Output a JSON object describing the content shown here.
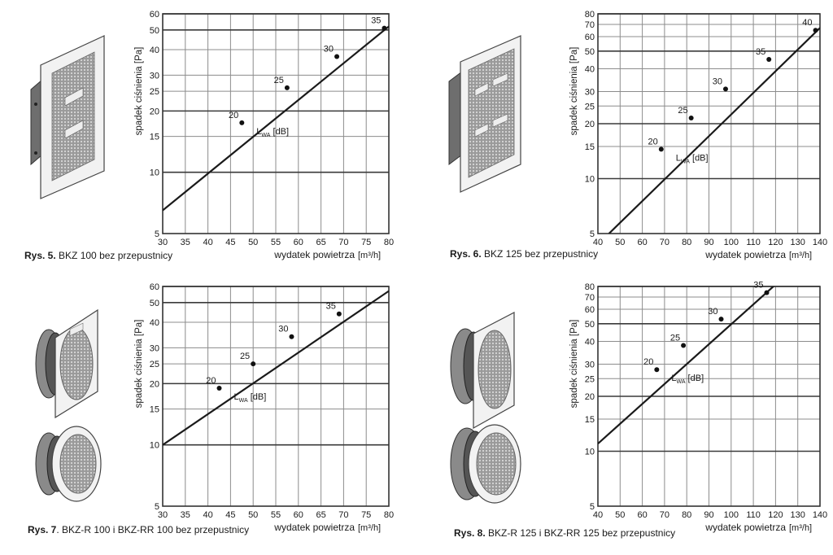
{
  "chart_data": [
    {
      "type": "line",
      "id": "rys5",
      "caption_bold": "Rys. 5.",
      "caption_text": " BKZ 100 bez przepustnicy",
      "xlabel": "wydatek powietrza",
      "xunit": "[m³/h]",
      "ylabel": "spadek ciśnienia [Pa]",
      "x_ticks": [
        "30",
        "35",
        "40",
        "45",
        "50",
        "55",
        "60",
        "65",
        "70",
        "75",
        "80"
      ],
      "xlim": [
        30,
        80
      ],
      "y_ticks": [
        "5",
        "10",
        "15",
        "20",
        "25",
        "30",
        "40",
        "50",
        "60"
      ],
      "ylim": [
        5,
        60
      ],
      "y_scale": "log",
      "series": [
        {
          "values": [
            [
              30,
              6.5
            ],
            [
              80,
              52
            ]
          ]
        }
      ],
      "points": [
        {
          "label": "20",
          "x": 47.5,
          "y": 17.5
        },
        {
          "label": "25",
          "x": 57.5,
          "y": 26
        },
        {
          "label": "30",
          "x": 68.5,
          "y": 37
        },
        {
          "label": "35",
          "x": 79,
          "y": 51
        }
      ],
      "annotation": {
        "main": "L",
        "sub": "WA",
        "tail": " [dB]"
      }
    },
    {
      "type": "line",
      "id": "rys6",
      "caption_bold": "Rys. 6.",
      "caption_text": " BKZ 125 bez przepustnicy",
      "xlabel": "wydatek powietrza",
      "xunit": "[m³/h]",
      "ylabel": "spadek ciśnienia [Pa]",
      "x_ticks": [
        "40",
        "50",
        "60",
        "70",
        "80",
        "90",
        "100",
        "110",
        "120",
        "130",
        "140"
      ],
      "xlim": [
        40,
        140
      ],
      "y_ticks": [
        "5",
        "10",
        "15",
        "20",
        "25",
        "30",
        "40",
        "50",
        "60",
        "70",
        "80"
      ],
      "ylim": [
        5,
        80
      ],
      "y_scale": "log",
      "series": [
        {
          "values": [
            [
              45,
              5
            ],
            [
              140,
              67
            ]
          ]
        }
      ],
      "points": [
        {
          "label": "20",
          "x": 68.5,
          "y": 14.5
        },
        {
          "label": "25",
          "x": 82,
          "y": 21.5
        },
        {
          "label": "30",
          "x": 97.5,
          "y": 31
        },
        {
          "label": "35",
          "x": 117,
          "y": 45
        },
        {
          "label": "40",
          "x": 138,
          "y": 65
        }
      ],
      "annotation": {
        "main": "L",
        "sub": "WA",
        "tail": " [dB]"
      }
    },
    {
      "type": "line",
      "id": "rys7",
      "caption_bold": "Rys. 7",
      "caption_text": ". BKZ-R 100 i BKZ-RR 100 bez przepustnicy",
      "xlabel": "wydatek powietrza",
      "xunit": "[m³/h]",
      "ylabel": "spadek ciśnienia [Pa]",
      "x_ticks": [
        "30",
        "35",
        "40",
        "45",
        "50",
        "55",
        "60",
        "65",
        "70",
        "75",
        "80"
      ],
      "xlim": [
        30,
        80
      ],
      "y_ticks": [
        "5",
        "10",
        "15",
        "20",
        "25",
        "30",
        "40",
        "50",
        "60"
      ],
      "ylim": [
        5,
        60
      ],
      "y_scale": "log",
      "series": [
        {
          "values": [
            [
              30,
              10
            ],
            [
              80,
              57
            ]
          ]
        }
      ],
      "points": [
        {
          "label": "20",
          "x": 42.5,
          "y": 19
        },
        {
          "label": "25",
          "x": 50,
          "y": 25
        },
        {
          "label": "30",
          "x": 58.5,
          "y": 34
        },
        {
          "label": "35",
          "x": 69,
          "y": 44
        }
      ],
      "annotation": {
        "main": "L",
        "sub": "WA",
        "tail": " [dB]"
      }
    },
    {
      "type": "line",
      "id": "rys8",
      "caption_bold": "Rys. 8.",
      "caption_text": " BKZ-R 125 i BKZ-RR 125 bez przepustnicy",
      "xlabel": "wydatek powietrza",
      "xunit": "[m³/h]",
      "ylabel": "spadek ciśnienia [Pa]",
      "x_ticks": [
        "40",
        "50",
        "60",
        "70",
        "80",
        "90",
        "100",
        "110",
        "120",
        "130",
        "140"
      ],
      "xlim": [
        40,
        140
      ],
      "y_ticks": [
        "5",
        "10",
        "15",
        "20",
        "25",
        "30",
        "40",
        "50",
        "60",
        "70",
        "80"
      ],
      "ylim": [
        5,
        80
      ],
      "y_scale": "log",
      "series": [
        {
          "values": [
            [
              40,
              11
            ],
            [
              120,
              82
            ]
          ]
        }
      ],
      "points": [
        {
          "label": "20",
          "x": 66.5,
          "y": 28
        },
        {
          "label": "25",
          "x": 78.5,
          "y": 38
        },
        {
          "label": "30",
          "x": 95.5,
          "y": 53
        },
        {
          "label": "35",
          "x": 116,
          "y": 74
        }
      ],
      "annotation": {
        "main": "L",
        "sub": "WA",
        "tail": " [dB]"
      }
    }
  ],
  "icons": [
    "square-grille-icon",
    "square-grille-large-icon",
    "round-grille-icon",
    "round-grille-large-icon"
  ]
}
